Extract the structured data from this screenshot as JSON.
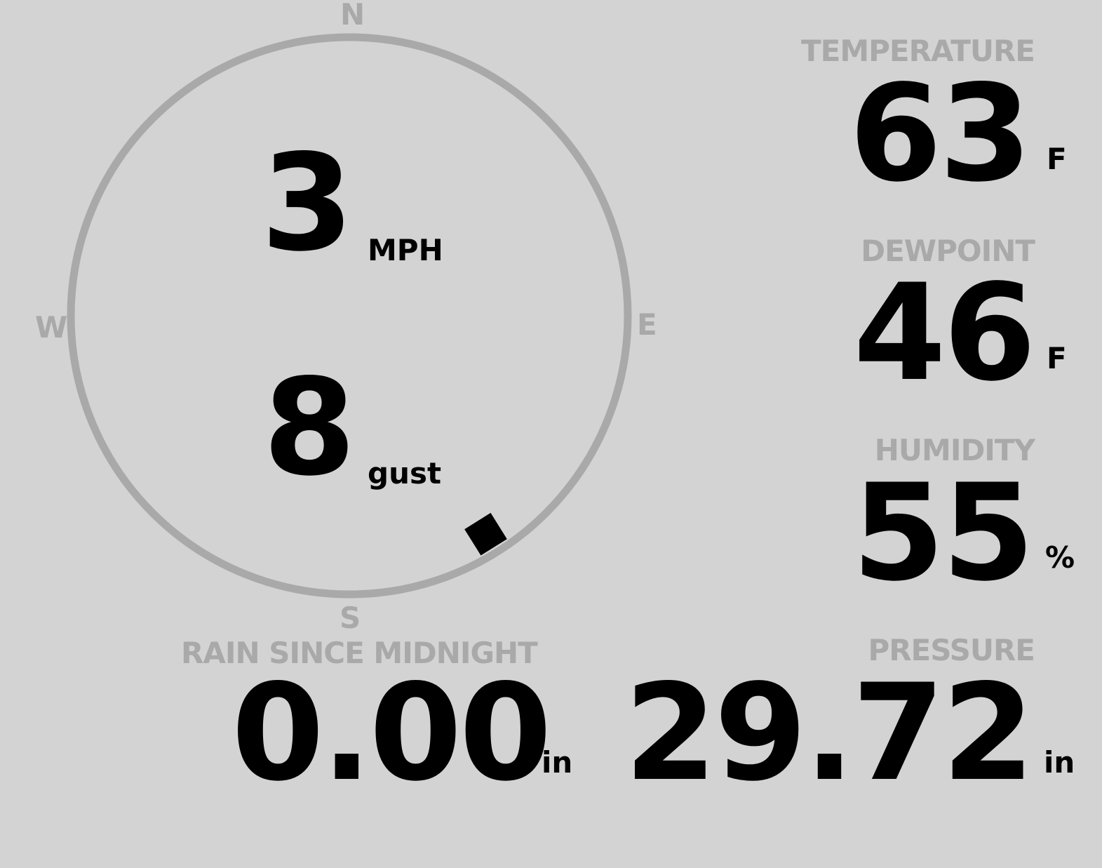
{
  "compass": {
    "n": "N",
    "e": "E",
    "s": "S",
    "w": "W",
    "wind_direction_deg": 148
  },
  "wind": {
    "speed": "3",
    "speed_unit": "MPH",
    "gust": "8",
    "gust_unit": "gust"
  },
  "temperature": {
    "label": "TEMPERATURE",
    "value": "63",
    "unit": "F"
  },
  "dewpoint": {
    "label": "DEWPOINT",
    "value": "46",
    "unit": "F"
  },
  "humidity": {
    "label": "HUMIDITY",
    "value": "55",
    "unit": "%"
  },
  "pressure": {
    "label": "PRESSURE",
    "value": "29.72",
    "unit": "in"
  },
  "rain": {
    "label": "RAIN SINCE MIDNIGHT",
    "value": "0.00",
    "unit": "in"
  },
  "colors": {
    "background": "#d3d3d3",
    "label": "#a9a9a9",
    "value": "#000000"
  }
}
